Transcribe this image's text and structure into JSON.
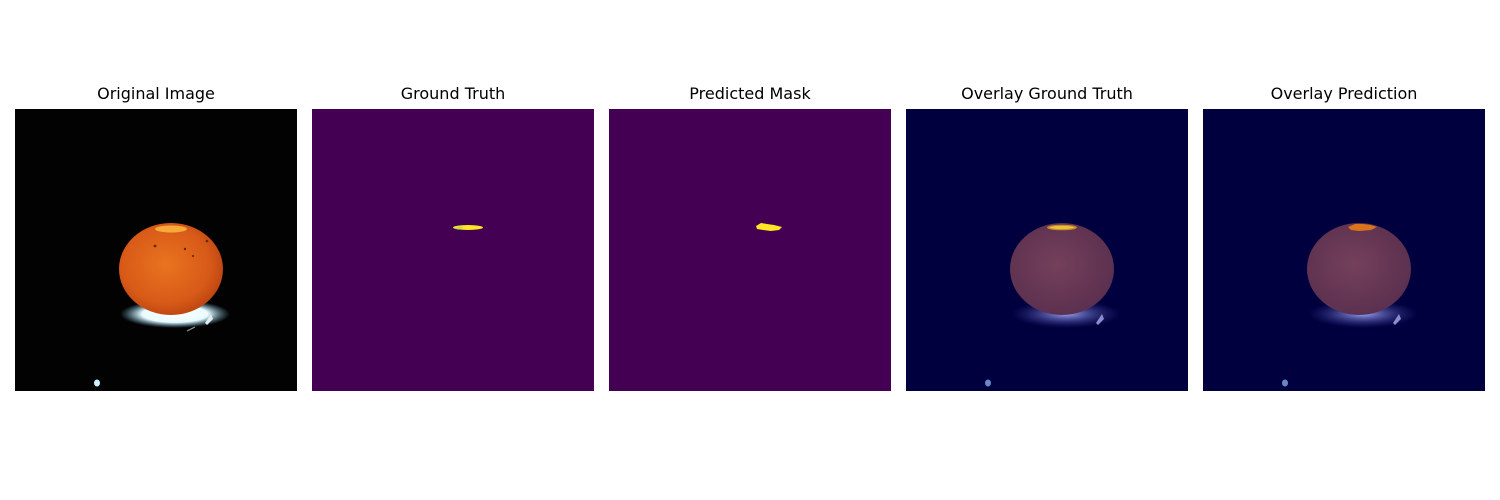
{
  "figure": {
    "panels": [
      {
        "id": "original",
        "title": "Original Image"
      },
      {
        "id": "ground-truth",
        "title": "Ground Truth"
      },
      {
        "id": "predicted",
        "title": "Predicted Mask"
      },
      {
        "id": "overlay-gt",
        "title": "Overlay Ground Truth"
      },
      {
        "id": "overlay-pred",
        "title": "Overlay Prediction"
      }
    ],
    "colors": {
      "photo_background": "#020202",
      "fruit_orange": "#e0661c",
      "fruit_highlight": "#f7a93a",
      "glow_white": "#f2ffff",
      "mask_background": "#440154",
      "mask_foreground": "#fde725",
      "overlay_background": "#00003f",
      "overlay_fruit": "#6a3a55",
      "overlay_glow": "#7f86d6"
    }
  }
}
